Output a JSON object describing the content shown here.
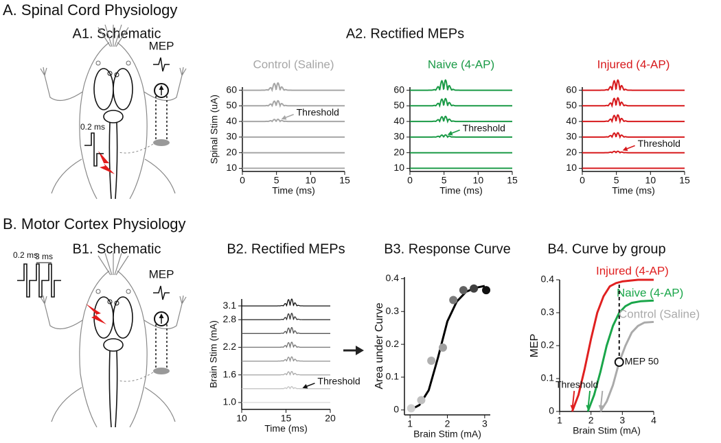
{
  "headings": {
    "a": "A. Spinal Cord Physiology",
    "a2": "A2. Rectified MEPs",
    "b": "B. Motor Cortex Physiology"
  },
  "schematics": [
    {
      "title": "A1. Schematic",
      "recording": "MEP",
      "pulse": "0.2 ms"
    },
    {
      "title": "B1. Schematic",
      "recording": "MEP",
      "pulse": "0.2 ms",
      "interval": "3 ms"
    }
  ],
  "chart_data": [
    {
      "type": "traces",
      "title": "Control (Saline)",
      "color": "#a6a6a6",
      "ylabel": "Spinal Stim (uA)",
      "xlabel": "Time (ms)",
      "xlim": [
        0,
        15
      ],
      "xticks": [
        0,
        5,
        10,
        15
      ],
      "ylim": [
        8,
        62
      ],
      "yticks": [
        10,
        20,
        30,
        40,
        50,
        60
      ],
      "levels": [
        10,
        20,
        30,
        40,
        50,
        60
      ],
      "amplitudes": [
        0,
        0,
        0,
        1.5,
        3.5,
        5
      ],
      "peak_time": 5,
      "annotation": {
        "text": "Threshold",
        "x": 5.5,
        "y": 41
      }
    },
    {
      "type": "traces",
      "title": "Naive (4-AP)",
      "color": "#1a9a46",
      "xlabel": "Time (ms)",
      "xlim": [
        0,
        15
      ],
      "xticks": [
        0,
        5,
        10,
        15
      ],
      "ylim": [
        8,
        62
      ],
      "yticks": [
        10,
        20,
        30,
        40,
        50,
        60
      ],
      "levels": [
        10,
        20,
        30,
        40,
        50,
        60
      ],
      "amplitudes": [
        0,
        0,
        1.5,
        3.5,
        5,
        7
      ],
      "peak_time": 5,
      "annotation": {
        "text": "Threshold",
        "x": 5.3,
        "y": 31
      }
    },
    {
      "type": "traces",
      "title": "Injured (4-AP)",
      "color": "#d7191c",
      "xlabel": "Time (ms)",
      "xlim": [
        0,
        15
      ],
      "xticks": [
        0,
        5,
        10,
        15
      ],
      "ylim": [
        8,
        62
      ],
      "yticks": [
        10,
        20,
        30,
        40,
        50,
        60
      ],
      "levels": [
        10,
        20,
        30,
        40,
        50,
        60
      ],
      "amplitudes": [
        0,
        1,
        3,
        4.5,
        5.5,
        7
      ],
      "peak_time": 5,
      "annotation": {
        "text": "Threshold",
        "x": 5.7,
        "y": 21
      }
    },
    {
      "type": "traces",
      "title": "B2. Rectified MEPs",
      "ylabel": "Brain Stim (mA)",
      "xlabel": "Time (ms)",
      "xlim": [
        10,
        20
      ],
      "xticks": [
        10,
        15,
        20
      ],
      "ylim": [
        0.85,
        3.25
      ],
      "yticks": [
        {
          "value": 1,
          "label": "1.0"
        },
        1.6,
        2.2,
        2.8,
        3.1
      ],
      "levels": [
        1.0,
        1.3,
        1.6,
        1.9,
        2.2,
        2.5,
        2.8,
        3.1
      ],
      "amplitudes": [
        0,
        0.05,
        0.08,
        0.1,
        0.12,
        0.14,
        0.15,
        0.16
      ],
      "colors": [
        "#d8d8d8",
        "#c4c4c4",
        "#aaaaaa",
        "#909090",
        "#747474",
        "#555555",
        "#333333",
        "#111111"
      ],
      "peak_time": 15.5,
      "annotation": {
        "text": "Threshold",
        "x": 16.7,
        "y": 1.3
      }
    },
    {
      "type": "scatter",
      "title": "B3. Response Curve",
      "ylabel": "Area under Curve",
      "xlabel": "Brain Stim (mA)",
      "color": "#000000",
      "xlim": [
        0.85,
        3.15
      ],
      "xticks": [
        1,
        2,
        3
      ],
      "ylim": [
        -0.015,
        0.405
      ],
      "yticks": [
        0,
        0.1,
        0.2,
        0.3,
        0.4
      ],
      "x": [
        1.03,
        1.3,
        1.57,
        1.88,
        2.16,
        2.43,
        2.71,
        3.04
      ],
      "y": [
        0.005,
        0.03,
        0.15,
        0.19,
        0.335,
        0.365,
        0.37,
        0.365
      ],
      "colors": [
        "#d0d0d0",
        "#c0c0c0",
        "#b0b0b0",
        "#a0a0a0",
        "#7a7a7a",
        "#606060",
        "#404040",
        "#111111"
      ],
      "fit": {
        "x": [
          1,
          1.25,
          1.5,
          1.75,
          2,
          2.25,
          2.5,
          2.75,
          3
        ],
        "y": [
          0,
          0.015,
          0.06,
          0.16,
          0.27,
          0.33,
          0.36,
          0.372,
          0.378
        ]
      }
    },
    {
      "type": "line",
      "title": "B4. Curve by group",
      "ylabel": "MEP",
      "xlabel": "Brain Stim (mA)",
      "xlim": [
        1,
        4
      ],
      "xticks": [
        1,
        2,
        3,
        4
      ],
      "ylim": [
        0,
        0.4
      ],
      "yticks": [
        0,
        0.1,
        0.2,
        0.3,
        0.4
      ],
      "series": [
        {
          "name": "Injured (4-AP)",
          "color": "#e02020",
          "x": [
            1.4,
            1.6,
            1.8,
            2.0,
            2.2,
            2.4,
            2.6,
            2.8,
            3.0,
            3.5,
            4.0
          ],
          "values": [
            0,
            0.05,
            0.13,
            0.22,
            0.3,
            0.35,
            0.38,
            0.39,
            0.395,
            0.4,
            0.4
          ]
        },
        {
          "name": "Naive (4-AP)",
          "color": "#1aa64a",
          "x": [
            1.9,
            2.1,
            2.3,
            2.5,
            2.7,
            2.9,
            3.1,
            3.3,
            3.6,
            4.0
          ],
          "values": [
            0,
            0.05,
            0.12,
            0.2,
            0.26,
            0.3,
            0.32,
            0.33,
            0.335,
            0.337
          ]
        },
        {
          "name": "Control (Saline)",
          "color": "#aaaaaa",
          "x": [
            2.3,
            2.5,
            2.7,
            2.9,
            3.1,
            3.3,
            3.5,
            3.7,
            4.0
          ],
          "values": [
            0,
            0.03,
            0.08,
            0.15,
            0.2,
            0.24,
            0.26,
            0.27,
            0.272
          ]
        }
      ],
      "threshold": {
        "label": "Threshold",
        "x": [
          1.4,
          1.9,
          2.3
        ]
      },
      "mep50": {
        "label": "MEP 50",
        "x": 2.9,
        "y": 0.15,
        "y_top": 0.39
      }
    }
  ]
}
